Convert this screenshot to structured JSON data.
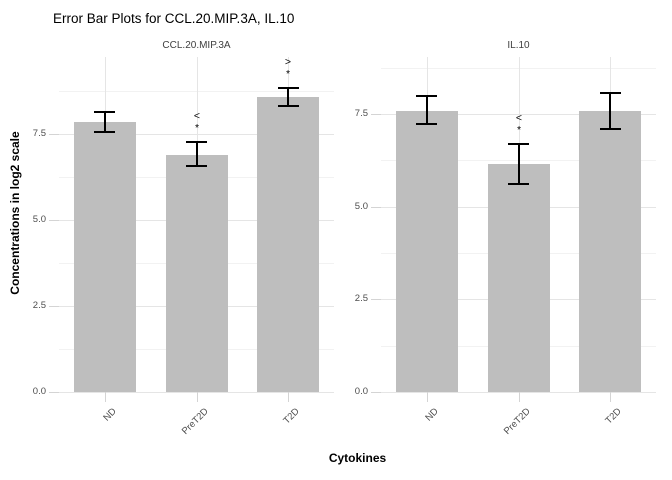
{
  "title": "Error Bar Plots for CCL.20.MIP.3A, IL.10",
  "axes": {
    "y_title": "Concentrations in log2 scale",
    "x_title": "Cytokines"
  },
  "colors": {
    "bar_fill": "#bebebe",
    "error_bar": "#000000",
    "grid_major": "#e5e5e5",
    "grid_minor": "#f2f2f2",
    "axis_tick": "#d4d4d4",
    "tick_label": "#4d4d4d",
    "panel_title": "#404040",
    "title": "#000000",
    "annotation": "#000000",
    "background": "#ffffff"
  },
  "chart_data": [
    {
      "type": "bar",
      "title": "CCL.20.MIP.3A",
      "categories": [
        "ND",
        "PreT2D",
        "T2D"
      ],
      "values": [
        7.83,
        6.87,
        8.56
      ],
      "error_low": [
        7.54,
        6.55,
        8.32
      ],
      "error_high": [
        8.12,
        7.25,
        8.82
      ],
      "annotations": [
        {
          "index": 1,
          "lines": [
            "<",
            "*"
          ]
        },
        {
          "index": 2,
          "lines": [
            ">",
            "*"
          ]
        }
      ],
      "xlabel": "Cytokines",
      "ylabel": "Concentrations in log2 scale",
      "ylim": [
        0,
        9.73
      ],
      "y_major_ticks": [
        0,
        2.5,
        5,
        7.5
      ],
      "y_minor_ticks": [
        1.25,
        3.75,
        6.25,
        8.75
      ],
      "y_tick_labels": [
        "0.0",
        "2.5",
        "5.0",
        "7.5"
      ],
      "grid": true,
      "legend": "none"
    },
    {
      "type": "bar",
      "title": "IL.10",
      "categories": [
        "ND",
        "PreT2D",
        "T2D"
      ],
      "values": [
        7.59,
        6.14,
        7.59
      ],
      "error_low": [
        7.24,
        5.6,
        7.1
      ],
      "error_high": [
        7.99,
        6.68,
        8.07
      ],
      "annotations": [
        {
          "index": 1,
          "lines": [
            "<",
            "*"
          ]
        }
      ],
      "xlabel": "Cytokines",
      "ylabel": "Concentrations in log2 scale",
      "ylim": [
        0,
        9.04
      ],
      "y_major_ticks": [
        0,
        2.5,
        5,
        7.5
      ],
      "y_minor_ticks": [
        1.25,
        3.75,
        6.25,
        8.75
      ],
      "y_tick_labels": [
        "0.0",
        "2.5",
        "5.0",
        "7.5"
      ],
      "grid": true,
      "legend": "none"
    }
  ]
}
